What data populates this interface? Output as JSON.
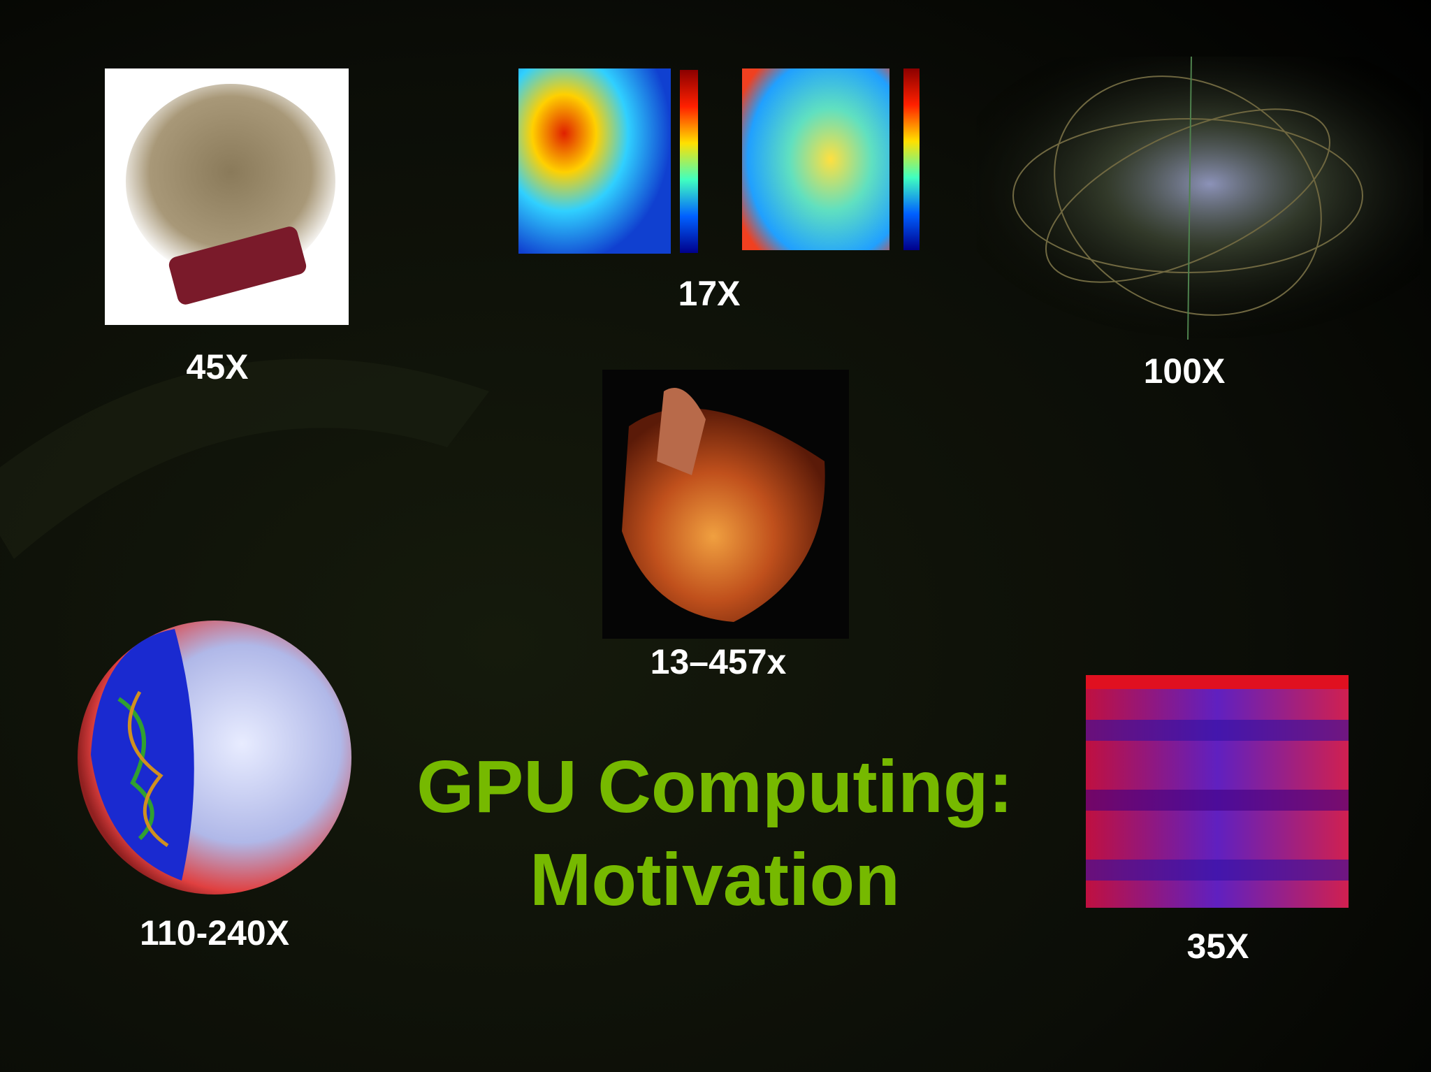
{
  "slide": {
    "title": {
      "line1": "GPU Computing:",
      "line2": "Motivation"
    },
    "figures": [
      {
        "label": "45X"
      },
      {
        "label": "17X"
      },
      {
        "label": "100X"
      },
      {
        "label": "13–457x"
      },
      {
        "label": "110-240X"
      },
      {
        "label": "35X"
      }
    ]
  }
}
